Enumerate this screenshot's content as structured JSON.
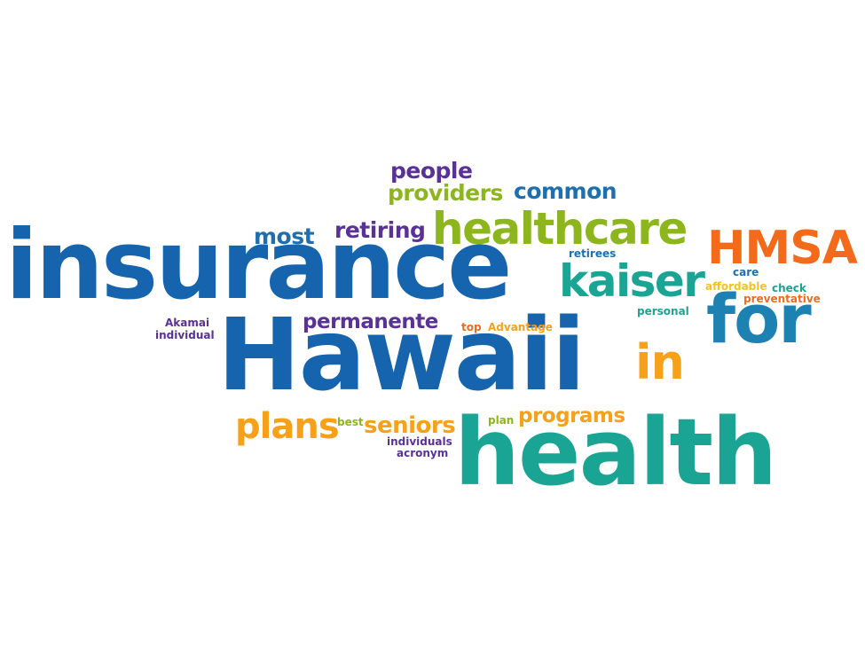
{
  "word_cloud": {
    "words": {
      "insurance": "insurance",
      "hawaii": "Hawaii",
      "health": "health",
      "healthcare": "healthcare",
      "for": "for",
      "hmsa": "HMSA",
      "kaiser": "kaiser",
      "in": "in",
      "plans": "plans",
      "seniors": "seniors",
      "programs": "programs",
      "permanente": "permanente",
      "people": "people",
      "providers": "providers",
      "common": "common",
      "retiring": "retiring",
      "most": "most",
      "retirees": "retirees",
      "care": "care",
      "affordable": "affordable",
      "check": "check",
      "preventative": "preventative",
      "personal": "personal",
      "akamai": "Akamai",
      "individual": "individual",
      "top": "top",
      "advantage": "Advantage",
      "best": "best",
      "plan": "plan",
      "individuals": "individuals",
      "acronym": "acronym"
    },
    "colors": {
      "blue": "#1664ad",
      "teal": "#1aa493",
      "green": "#8db51d",
      "orange": "#f36a1a",
      "amber": "#f7a11a",
      "purple": "#5a3196",
      "yellow": "#f2c41e",
      "light_blue": "#1d82b2"
    }
  }
}
